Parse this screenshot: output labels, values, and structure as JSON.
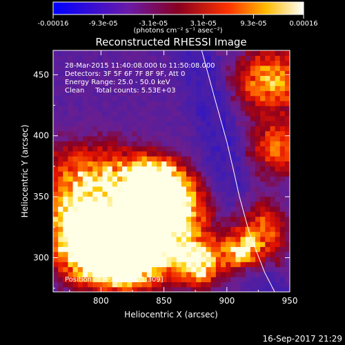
{
  "chart_data": {
    "type": "heatmap",
    "title": "Reconstructed RHESSI Image",
    "xlabel": "Heliocentric X (arcsec)",
    "ylabel": "Heliocentric Y (arcsec)",
    "xlim": [
      762,
      950
    ],
    "ylim": [
      272,
      470
    ],
    "xticks": [
      800,
      850,
      900,
      950
    ],
    "yticks": [
      300,
      350,
      400,
      450
    ],
    "colorbar": {
      "ticks": [
        "-0.00016",
        "-9.3e-05",
        "-3.1e-05",
        "3.1e-05",
        "9.3e-05",
        "0.00016"
      ],
      "units": "(photons cm⁻² s⁻¹ asec⁻²)",
      "range": [
        -0.00016,
        0.00016
      ]
    },
    "annotations": [
      "28-Mar-2015 11:40:08.000 to 11:50:08.000",
      "Detectors: 3F 5F 6F 7F 8F 9F, Att 0",
      "Energy Range: 25.0 - 50.0 keV",
      "Clean     Total counts: 5.53E+03"
    ],
    "peak_label": "Position of Peak = [821,309]",
    "peak": [
      821,
      309
    ],
    "limb_curve": [
      [
        880,
        470
      ],
      [
        890,
        432
      ],
      [
        900,
        395
      ],
      [
        905,
        373
      ],
      [
        910,
        350
      ],
      [
        918,
        320
      ],
      [
        930,
        288
      ],
      [
        938,
        272
      ]
    ],
    "emission_blobs": [
      {
        "x": 830,
        "y": 318,
        "sx": 32,
        "sy": 20,
        "amp": 0.95
      },
      {
        "x": 812,
        "y": 300,
        "sx": 22,
        "sy": 18,
        "amp": 0.85
      },
      {
        "x": 850,
        "y": 345,
        "sx": 18,
        "sy": 14,
        "amp": 0.85
      },
      {
        "x": 842,
        "y": 365,
        "sx": 16,
        "sy": 12,
        "amp": 0.7
      },
      {
        "x": 795,
        "y": 365,
        "sx": 30,
        "sy": 20,
        "amp": 0.5
      },
      {
        "x": 780,
        "y": 325,
        "sx": 18,
        "sy": 22,
        "amp": 0.55
      },
      {
        "x": 878,
        "y": 295,
        "sx": 12,
        "sy": 12,
        "amp": 0.6
      },
      {
        "x": 935,
        "y": 445,
        "sx": 18,
        "sy": 18,
        "amp": 0.55
      },
      {
        "x": 940,
        "y": 390,
        "sx": 14,
        "sy": 14,
        "amp": 0.45
      },
      {
        "x": 925,
        "y": 320,
        "sx": 14,
        "sy": 18,
        "amp": 0.5
      },
      {
        "x": 910,
        "y": 305,
        "sx": 10,
        "sy": 10,
        "amp": 0.45
      }
    ]
  },
  "timestamp": "16-Sep-2017 21:29"
}
